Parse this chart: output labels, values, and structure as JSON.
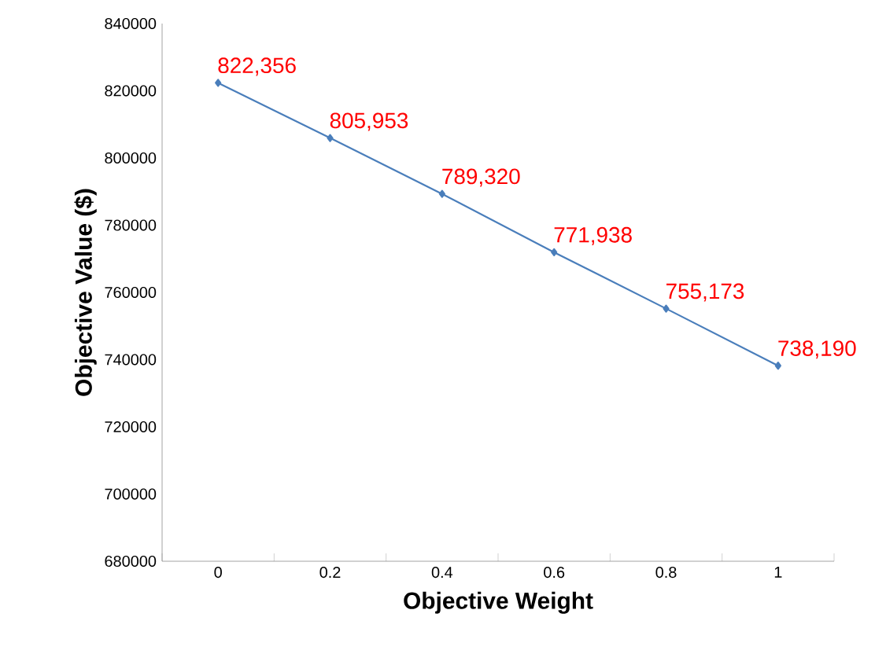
{
  "chart_data": {
    "type": "line",
    "xlabel": "Objective Weight",
    "ylabel": "Objective Value ($)",
    "categories": [
      "0",
      "0.2",
      "0.4",
      "0.6",
      "0.8",
      "1"
    ],
    "series": [
      {
        "color": "#4a7ebb",
        "values": [
          822356,
          805953,
          789320,
          771938,
          755173,
          738190
        ],
        "value_labels": [
          "822,356",
          "805,953",
          "789,320",
          "771,938",
          "755,173",
          "738,190"
        ]
      }
    ],
    "ylim": [
      680000,
      840000
    ],
    "yticks": [
      680000,
      700000,
      720000,
      740000,
      760000,
      780000,
      800000,
      820000,
      840000
    ],
    "marker": "diamond",
    "line_style": "solid",
    "grid": false
  }
}
